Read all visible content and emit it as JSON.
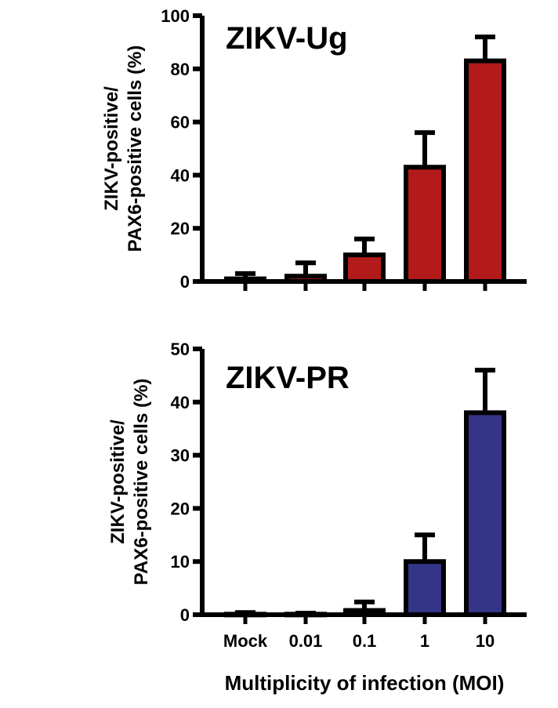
{
  "chart_data": [
    {
      "type": "bar",
      "title": "ZIKV-Ug",
      "ylabel_lines": [
        "ZIKV-positive/",
        "PAX6-positive cells (%)"
      ],
      "ylim": [
        0,
        100
      ],
      "yticks": [
        "0",
        "20",
        "40",
        "60",
        "80",
        "100"
      ],
      "categories": [
        "Mock",
        "0.01",
        "0.1",
        "1",
        "10"
      ],
      "values": [
        1,
        2,
        10,
        43,
        83
      ],
      "errors": [
        2,
        5,
        6,
        13,
        9
      ],
      "bar_color": "#b31b1b"
    },
    {
      "type": "bar",
      "title": "ZIKV-PR",
      "ylabel_lines": [
        "ZIKV-positive/",
        "PAX6-positive cells (%)"
      ],
      "ylim": [
        0,
        50
      ],
      "yticks": [
        "0",
        "10",
        "20",
        "30",
        "40",
        "50"
      ],
      "categories": [
        "Mock",
        "0.01",
        "0.1",
        "1",
        "10"
      ],
      "values": [
        0.1,
        0.1,
        0.8,
        10,
        38
      ],
      "errors": [
        0.3,
        0.2,
        1.6,
        5,
        8
      ],
      "bar_color": "#343489"
    }
  ],
  "xlabel": "Multiplicity of infection (MOI)"
}
